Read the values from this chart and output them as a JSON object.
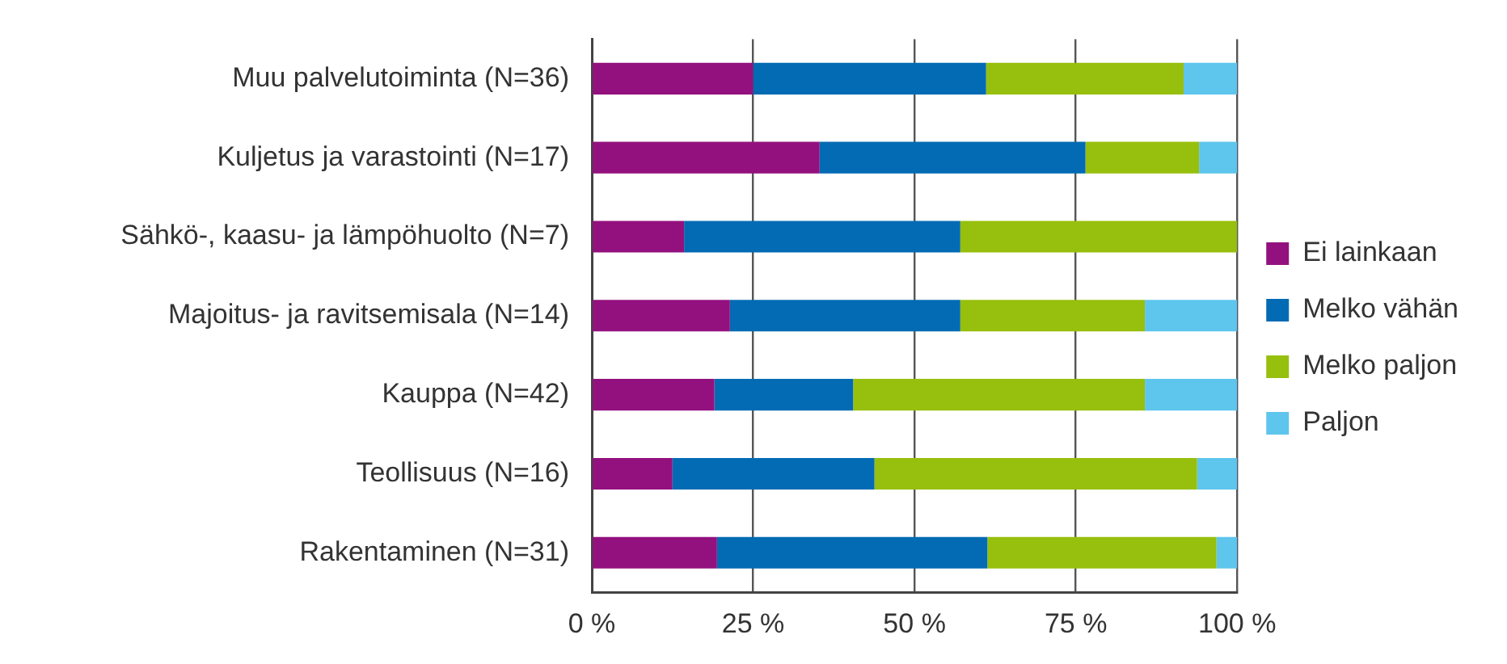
{
  "chart_data": {
    "type": "bar",
    "orientation": "horizontal",
    "stacked": true,
    "categories": [
      "Muu palvelutoiminta (N=36)",
      "Kuljetus ja varastointi (N=17)",
      "Sähkö-, kaasu- ja lämpöhuolto (N=7)",
      "Majoitus- ja ravitsemisala (N=14)",
      "Kauppa (N=42)",
      "Teollisuus (N=16)",
      "Rakentaminen (N=31)"
    ],
    "series": [
      {
        "name": "Ei lainkaan",
        "color": "#93117e",
        "values": [
          25.0,
          35.3,
          14.3,
          21.4,
          19.0,
          12.5,
          19.4
        ]
      },
      {
        "name": "Melko vähän",
        "color": "#036bb3",
        "values": [
          36.1,
          41.2,
          42.8,
          35.7,
          21.5,
          31.3,
          41.9
        ]
      },
      {
        "name": "Melko paljon",
        "color": "#97bf0d",
        "values": [
          30.6,
          17.6,
          42.9,
          28.6,
          45.2,
          50.0,
          35.5
        ]
      },
      {
        "name": "Paljon",
        "color": "#5ec5ed",
        "values": [
          8.3,
          5.9,
          0,
          14.3,
          14.3,
          6.2,
          3.2
        ]
      }
    ],
    "xlim": [
      0,
      100
    ],
    "xticks": [
      {
        "value": 0,
        "label": "0 %"
      },
      {
        "value": 25,
        "label": "25 %"
      },
      {
        "value": 50,
        "label": "50 %"
      },
      {
        "value": 75,
        "label": "75 %"
      },
      {
        "value": 100,
        "label": "100 %"
      }
    ],
    "grid": "x",
    "legend": "right"
  }
}
